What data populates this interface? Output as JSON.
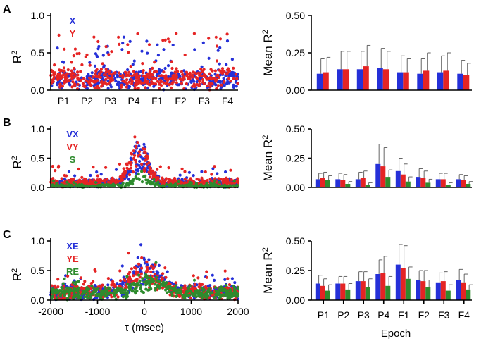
{
  "chart_data": [
    {
      "panel": "A-left",
      "type": "scatter",
      "letter": "A",
      "ylabel": "R",
      "ylabel_sup": "2",
      "ylim": [
        0,
        1.0
      ],
      "yticks": [
        "0.0",
        "0.5",
        "1.0"
      ],
      "xlim": [
        -2000,
        2000
      ],
      "x_categories": [
        "P1",
        "P2",
        "P3",
        "P4",
        "F1",
        "F2",
        "F3",
        "F4"
      ],
      "legend": [
        {
          "name": "X",
          "color": "#2530d8"
        },
        {
          "name": "Y",
          "color": "#e52424"
        }
      ],
      "series": [
        {
          "name": "X",
          "color": "#2530d8",
          "profile": "flat",
          "base": 0.08,
          "spread": 0.2,
          "count": 420,
          "seed": 11
        },
        {
          "name": "Y",
          "color": "#e52424",
          "profile": "flat",
          "base": 0.08,
          "spread": 0.22,
          "count": 420,
          "seed": 23
        }
      ]
    },
    {
      "panel": "A-right",
      "type": "bar",
      "ylabel": "Mean R",
      "ylabel_sup": "2",
      "ylim": [
        0,
        0.5
      ],
      "yticks": [
        "0.00",
        "0.25",
        "0.50"
      ],
      "categories": [
        "P1",
        "P2",
        "P3",
        "P4",
        "F1",
        "F2",
        "F3",
        "F4"
      ],
      "series": [
        {
          "name": "X",
          "color": "#2530d8",
          "values": [
            0.11,
            0.14,
            0.14,
            0.15,
            0.12,
            0.11,
            0.12,
            0.11
          ],
          "errors": [
            0.1,
            0.12,
            0.12,
            0.13,
            0.11,
            0.1,
            0.11,
            0.09
          ]
        },
        {
          "name": "Y",
          "color": "#e52424",
          "values": [
            0.12,
            0.14,
            0.16,
            0.14,
            0.12,
            0.13,
            0.13,
            0.1
          ],
          "errors": [
            0.1,
            0.12,
            0.14,
            0.12,
            0.09,
            0.12,
            0.12,
            0.08
          ]
        }
      ]
    },
    {
      "panel": "B-left",
      "type": "scatter",
      "letter": "B",
      "ylabel": "R",
      "ylabel_sup": "2",
      "ylim": [
        0,
        1.0
      ],
      "yticks": [
        "0.0",
        "0.5",
        "1.0"
      ],
      "xlim": [
        -2000,
        2000
      ],
      "legend": [
        {
          "name": "VX",
          "color": "#2530d8"
        },
        {
          "name": "VY",
          "color": "#e52424"
        },
        {
          "name": "S",
          "color": "#2e8b2e"
        }
      ],
      "series": [
        {
          "name": "VX",
          "color": "#2530d8",
          "profile": "peak",
          "center": -100,
          "width": 260,
          "peak": 0.75,
          "base": 0.05,
          "spread": 0.12,
          "count": 420,
          "seed": 31
        },
        {
          "name": "VY",
          "color": "#e52424",
          "profile": "peak",
          "center": -120,
          "width": 280,
          "peak": 0.7,
          "base": 0.05,
          "spread": 0.14,
          "count": 420,
          "seed": 47
        },
        {
          "name": "S",
          "color": "#2e8b2e",
          "profile": "peak",
          "center": -80,
          "width": 200,
          "peak": 0.25,
          "base": 0.02,
          "spread": 0.04,
          "count": 260,
          "seed": 59
        }
      ]
    },
    {
      "panel": "B-right",
      "type": "bar",
      "ylabel": "Mean R",
      "ylabel_sup": "2",
      "ylim": [
        0,
        0.5
      ],
      "yticks": [
        "0.00",
        "0.25",
        "0.50"
      ],
      "categories": [
        "P1",
        "P2",
        "P3",
        "P4",
        "F1",
        "F2",
        "F3",
        "F4"
      ],
      "series": [
        {
          "name": "VX",
          "color": "#2530d8",
          "values": [
            0.07,
            0.07,
            0.07,
            0.2,
            0.14,
            0.09,
            0.07,
            0.07
          ],
          "errors": [
            0.05,
            0.05,
            0.06,
            0.17,
            0.11,
            0.07,
            0.05,
            0.04
          ]
        },
        {
          "name": "VY",
          "color": "#e52424",
          "values": [
            0.08,
            0.06,
            0.08,
            0.18,
            0.11,
            0.08,
            0.07,
            0.06
          ],
          "errors": [
            0.05,
            0.05,
            0.06,
            0.16,
            0.09,
            0.06,
            0.05,
            0.04
          ]
        },
        {
          "name": "S",
          "color": "#2e8b2e",
          "values": [
            0.06,
            0.03,
            0.02,
            0.09,
            0.05,
            0.04,
            0.02,
            0.03
          ],
          "errors": [
            0.04,
            0.02,
            0.02,
            0.06,
            0.04,
            0.03,
            0.02,
            0.02
          ]
        }
      ]
    },
    {
      "panel": "C-left",
      "type": "scatter",
      "letter": "C",
      "ylabel": "R",
      "ylabel_sup": "2",
      "ylim": [
        0,
        1.0
      ],
      "yticks": [
        "0.0",
        "0.5",
        "1.0"
      ],
      "xlim": [
        -2000,
        2000
      ],
      "xticks": [
        "-2000",
        "-1000",
        "0",
        "1000",
        "2000"
      ],
      "xlabel": "τ (msec)",
      "legend": [
        {
          "name": "XE",
          "color": "#2530d8"
        },
        {
          "name": "YE",
          "color": "#e52424"
        },
        {
          "name": "RE",
          "color": "#2e8b2e"
        }
      ],
      "series": [
        {
          "name": "XE",
          "color": "#2530d8",
          "profile": "peak",
          "center": 50,
          "width": 420,
          "peak": 0.55,
          "base": 0.1,
          "spread": 0.18,
          "count": 420,
          "seed": 71
        },
        {
          "name": "YE",
          "color": "#e52424",
          "profile": "peak",
          "center": 0,
          "width": 450,
          "peak": 0.5,
          "base": 0.1,
          "spread": 0.2,
          "count": 420,
          "seed": 83
        },
        {
          "name": "RE",
          "color": "#2e8b2e",
          "profile": "peak",
          "center": 100,
          "width": 380,
          "peak": 0.3,
          "base": 0.09,
          "spread": 0.15,
          "count": 420,
          "seed": 97
        }
      ]
    },
    {
      "panel": "C-right",
      "type": "bar",
      "ylabel": "Mean R",
      "ylabel_sup": "2",
      "ylim": [
        0,
        0.5
      ],
      "yticks": [
        "0.00",
        "0.25",
        "0.50"
      ],
      "categories": [
        "P1",
        "P2",
        "P3",
        "P4",
        "F1",
        "F2",
        "F3",
        "F4"
      ],
      "xlabel": "Epoch",
      "series": [
        {
          "name": "XE",
          "color": "#2530d8",
          "values": [
            0.14,
            0.14,
            0.16,
            0.22,
            0.3,
            0.17,
            0.15,
            0.17
          ],
          "errors": [
            0.07,
            0.06,
            0.08,
            0.12,
            0.17,
            0.08,
            0.08,
            0.09
          ]
        },
        {
          "name": "YE",
          "color": "#e52424",
          "values": [
            0.12,
            0.14,
            0.16,
            0.23,
            0.27,
            0.16,
            0.16,
            0.15
          ],
          "errors": [
            0.06,
            0.06,
            0.08,
            0.14,
            0.19,
            0.09,
            0.08,
            0.07
          ]
        },
        {
          "name": "RE",
          "color": "#2e8b2e",
          "values": [
            0.08,
            0.09,
            0.11,
            0.12,
            0.18,
            0.11,
            0.08,
            0.09
          ],
          "errors": [
            0.05,
            0.05,
            0.07,
            0.08,
            0.1,
            0.06,
            0.05,
            0.04
          ]
        }
      ]
    }
  ]
}
